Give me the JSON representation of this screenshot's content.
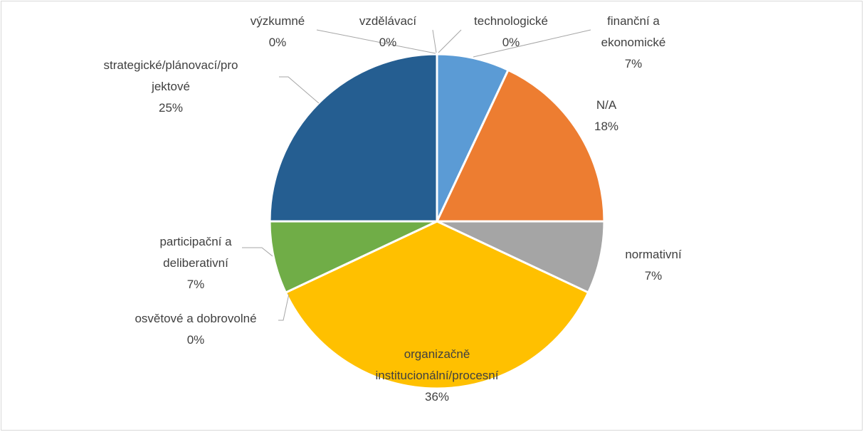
{
  "chart_data": {
    "type": "pie",
    "categories": [
      "finanční a ekonomické",
      "N/A",
      "normativní",
      "organizačně institucionální/procesní",
      "osvětové a dobrovolné",
      "participační a deliberativní",
      "strategické/plánovací/projektové",
      "výzkumné",
      "vzdělávací",
      "technologické"
    ],
    "values": [
      7,
      18,
      7,
      36,
      0,
      7,
      25,
      0,
      0,
      0
    ],
    "value_labels": [
      "7%",
      "18%",
      "7%",
      "36%",
      "0%",
      "7%",
      "25%",
      "0%",
      "0%",
      "0%"
    ],
    "colors": [
      "#5b9bd5",
      "#ed7d31",
      "#a5a5a5",
      "#ffc000",
      "#4472c4",
      "#70ad47",
      "#255e91",
      "#9e480e",
      "#636363",
      "#997300"
    ]
  }
}
